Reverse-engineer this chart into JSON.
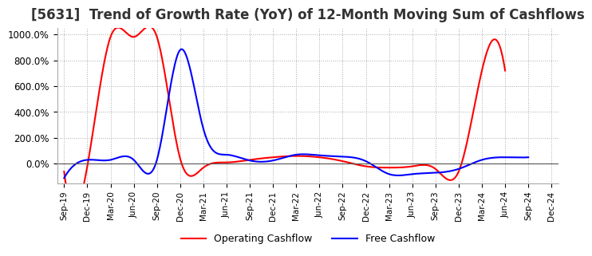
{
  "title": "[5631]  Trend of Growth Rate (YoY) of 12-Month Moving Sum of Cashflows",
  "title_fontsize": 12,
  "ylim": [
    -150,
    1050
  ],
  "yticks": [
    0.0,
    200.0,
    400.0,
    600.0,
    800.0,
    1000.0
  ],
  "ytick_labels": [
    "0.0%",
    "200.0%",
    "400.0%",
    "600.0%",
    "800.0%",
    "1000.0%"
  ],
  "background_color": "#ffffff",
  "grid_color": "#aaaaaa",
  "line_color_operating": "#ff0000",
  "line_color_free": "#0000ff",
  "legend_labels": [
    "Operating Cashflow",
    "Free Cashflow"
  ],
  "x_labels": [
    "Sep-19",
    "Dec-19",
    "Mar-20",
    "Jun-20",
    "Sep-20",
    "Dec-20",
    "Mar-21",
    "Jun-21",
    "Sep-21",
    "Dec-21",
    "Mar-22",
    "Jun-22",
    "Sep-22",
    "Dec-22",
    "Mar-23",
    "Jun-23",
    "Sep-23",
    "Dec-23",
    "Mar-24",
    "Jun-24",
    "Sep-24",
    "Dec-24"
  ],
  "operating_cashflow": [
    -60,
    -20,
    980,
    980,
    980,
    40,
    -30,
    10,
    30,
    50,
    60,
    50,
    20,
    -20,
    -30,
    -20,
    -40,
    -60,
    720,
    720,
    null,
    null
  ],
  "free_cashflow": [
    -110,
    30,
    30,
    30,
    30,
    880,
    270,
    70,
    25,
    25,
    70,
    65,
    55,
    20,
    -80,
    -80,
    -70,
    -40,
    30,
    50,
    50,
    null
  ]
}
